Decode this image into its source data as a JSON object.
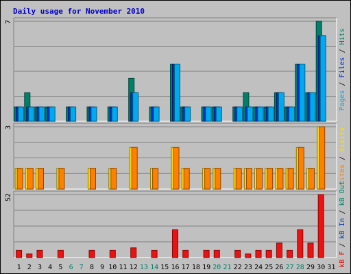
{
  "chart_data": {
    "type": "bar",
    "title": "Daily usage for November 2010",
    "categories": [
      "1",
      "2",
      "3",
      "4",
      "5",
      "6",
      "7",
      "8",
      "9",
      "10",
      "11",
      "12",
      "13",
      "14",
      "15",
      "16",
      "17",
      "18",
      "19",
      "20",
      "21",
      "22",
      "23",
      "24",
      "25",
      "26",
      "27",
      "28",
      "29",
      "30",
      "31"
    ],
    "weekend_days": [
      "6",
      "7",
      "13",
      "14",
      "20",
      "21",
      "27",
      "28"
    ],
    "panels": [
      {
        "name": "top",
        "max_label": "7",
        "ylim": [
          0,
          7
        ],
        "legend": [
          {
            "text": "Pages",
            "color": "#00aaee"
          },
          {
            "text": " / ",
            "color": "#000000"
          },
          {
            "text": "Files",
            "color": "#0033cc"
          },
          {
            "text": " / ",
            "color": "#000000"
          },
          {
            "text": "Hits",
            "color": "#00806a"
          }
        ],
        "series": [
          {
            "name": "Hits",
            "color": "#00806a",
            "values": [
              1,
              2,
              1,
              1,
              0,
              1,
              0,
              1,
              0,
              1,
              0,
              3,
              0,
              1,
              0,
              4,
              1,
              0,
              1,
              1,
              0,
              1,
              2,
              1,
              1,
              2,
              1,
              4,
              2,
              7,
              0
            ]
          },
          {
            "name": "Files",
            "color": "#0033cc",
            "values": [
              1,
              1,
              1,
              1,
              0,
              1,
              0,
              1,
              0,
              1,
              0,
              2,
              0,
              1,
              0,
              4,
              1,
              0,
              1,
              1,
              0,
              1,
              1,
              1,
              1,
              2,
              1,
              4,
              2,
              6,
              0
            ]
          },
          {
            "name": "Pages",
            "color": "#00aaee",
            "values": [
              1,
              1,
              1,
              1,
              0,
              1,
              0,
              1,
              0,
              1,
              0,
              2,
              0,
              1,
              0,
              4,
              1,
              0,
              1,
              1,
              0,
              1,
              1,
              1,
              1,
              2,
              1,
              4,
              2,
              6,
              0
            ]
          }
        ]
      },
      {
        "name": "middle",
        "max_label": "3",
        "ylim": [
          0,
          3
        ],
        "legend": [
          {
            "text": "Sites",
            "color": "#ff8000"
          },
          {
            "text": " / ",
            "color": "#000000"
          },
          {
            "text": "Visits",
            "color": "#ffe000"
          }
        ],
        "series": [
          {
            "name": "Visits",
            "color": "#ffe000",
            "values": [
              1,
              1,
              1,
              0,
              1,
              0,
              0,
              1,
              0,
              1,
              0,
              2,
              0,
              1,
              0,
              2,
              1,
              0,
              1,
              1,
              0,
              1,
              1,
              1,
              1,
              1,
              1,
              2,
              1,
              3,
              0
            ]
          },
          {
            "name": "Sites",
            "color": "#ff8000",
            "values": [
              1,
              1,
              1,
              0,
              1,
              0,
              0,
              1,
              0,
              1,
              0,
              2,
              0,
              1,
              0,
              2,
              1,
              0,
              1,
              1,
              0,
              1,
              1,
              1,
              1,
              1,
              1,
              2,
              1,
              3,
              0
            ]
          }
        ]
      },
      {
        "name": "bottom",
        "max_label": "52",
        "ylim": [
          0,
          52
        ],
        "legend": [
          {
            "text": "kB F",
            "color": "#ee0000"
          },
          {
            "text": " / ",
            "color": "#000000"
          },
          {
            "text": "kB In",
            "color": "#0033cc"
          },
          {
            "text": " / ",
            "color": "#000000"
          },
          {
            "text": "kB Out",
            "color": "#00806a"
          }
        ],
        "series": [
          {
            "name": "kB F",
            "color": "#ee1111",
            "values": [
              6,
              3,
              6,
              0,
              6,
              0,
              0,
              6,
              0,
              6,
              0,
              8,
              0,
              6,
              0,
              23,
              6,
              0,
              6,
              6,
              0,
              6,
              3,
              6,
              6,
              12,
              6,
              23,
              12,
              52,
              0
            ]
          }
        ]
      }
    ]
  }
}
